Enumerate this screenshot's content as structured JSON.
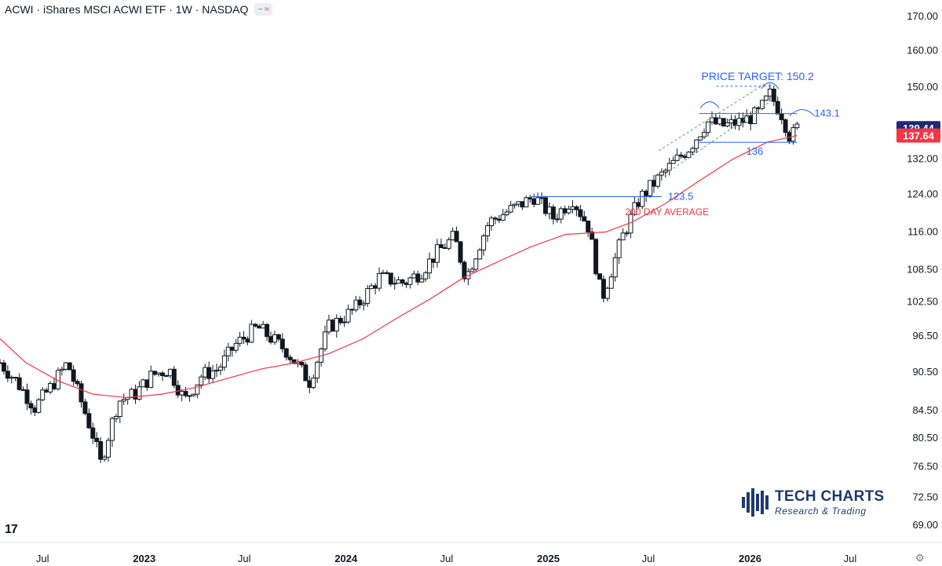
{
  "header": {
    "title": "ACWI · iShares MSCI ACWI ETF · 1W · NASDAQ",
    "badge_minus": "−",
    "badge_wave": "≈"
  },
  "footer": {
    "tv_logo": "17",
    "settings_icon": "⚙"
  },
  "brand": {
    "name": "TECH CHARTS",
    "subtitle": "Research & Trading"
  },
  "colors": {
    "up": "#ffffff",
    "down": "#131722",
    "ma": "#f23645",
    "annotation": "#2962ff",
    "pattern": "#4caf50",
    "last_price_bg": "#1e2a78",
    "ma_label_bg": "#f23645"
  },
  "chart_data": {
    "type": "candlestick",
    "symbol": "ACWI",
    "interval": "1W",
    "y_ticks": [
      "170.00",
      "160.00",
      "150.00",
      "139.44",
      "137.64",
      "132.00",
      "124.00",
      "116.00",
      "108.50",
      "102.50",
      "96.50",
      "90.50",
      "84.50",
      "80.50",
      "76.50",
      "72.50",
      "69.00"
    ],
    "y_tick_values": [
      170,
      160,
      150,
      132,
      124,
      116,
      108.5,
      102.5,
      96.5,
      90.5,
      84.5,
      80.5,
      76.5,
      72.5,
      69
    ],
    "x_ticks": [
      "Jul",
      "2023",
      "Jul",
      "2024",
      "Jul",
      "2025",
      "Jul",
      "2026",
      "Jul"
    ],
    "x_tick_dates": [
      "2022-07-01",
      "2023-01-01",
      "2023-07-01",
      "2024-01-01",
      "2024-07-01",
      "2025-01-01",
      "2025-07-01",
      "2026-01-01",
      "2026-07-01"
    ],
    "x_range": [
      "2022-04-15",
      "2026-09-20"
    ],
    "y_scale": "log",
    "ylim": [
      67,
      175
    ],
    "last_price": {
      "label": "139.44",
      "value": 139.44
    },
    "ma_value": {
      "label": "137.64",
      "value": 137.64
    },
    "anchors": [
      [
        "2022-04-15",
        92
      ],
      [
        "2022-05-15",
        89
      ],
      [
        "2022-06-17",
        85
      ],
      [
        "2022-07-15",
        88
      ],
      [
        "2022-08-15",
        92
      ],
      [
        "2022-09-30",
        81
      ],
      [
        "2022-10-14",
        77
      ],
      [
        "2022-11-15",
        86
      ],
      [
        "2022-12-15",
        87
      ],
      [
        "2023-01-15",
        90
      ],
      [
        "2023-02-15",
        91
      ],
      [
        "2023-03-15",
        86
      ],
      [
        "2023-04-15",
        90
      ],
      [
        "2023-05-15",
        91
      ],
      [
        "2023-06-15",
        95
      ],
      [
        "2023-07-25",
        98
      ],
      [
        "2023-09-15",
        94
      ],
      [
        "2023-10-27",
        89
      ],
      [
        "2023-12-01",
        98
      ],
      [
        "2024-01-15",
        101
      ],
      [
        "2024-03-01",
        107
      ],
      [
        "2024-04-15",
        106
      ],
      [
        "2024-05-15",
        108
      ],
      [
        "2024-06-15",
        112
      ],
      [
        "2024-07-15",
        115
      ],
      [
        "2024-08-05",
        107
      ],
      [
        "2024-09-15",
        118
      ],
      [
        "2024-10-15",
        120
      ],
      [
        "2024-11-15",
        122
      ],
      [
        "2024-12-06",
        123.5
      ],
      [
        "2025-01-10",
        119
      ],
      [
        "2025-02-14",
        123
      ],
      [
        "2025-03-15",
        117
      ],
      [
        "2025-04-08",
        103
      ],
      [
        "2025-05-15",
        115
      ],
      [
        "2025-06-15",
        123
      ],
      [
        "2025-07-15",
        127
      ],
      [
        "2025-08-15",
        131
      ],
      [
        "2025-09-15",
        135
      ],
      [
        "2025-10-15",
        141
      ],
      [
        "2025-11-15",
        140
      ],
      [
        "2025-12-15",
        141
      ],
      [
        "2026-01-15",
        143
      ],
      [
        "2026-02-06",
        148
      ],
      [
        "2026-02-27",
        143
      ],
      [
        "2026-03-15",
        137
      ],
      [
        "2026-03-27",
        139.44
      ]
    ],
    "moving_average": {
      "name": "200 DAY AVERAGE",
      "points": [
        [
          "2022-04-15",
          96
        ],
        [
          "2022-06-01",
          92
        ],
        [
          "2022-08-01",
          89
        ],
        [
          "2022-10-01",
          87
        ],
        [
          "2022-12-01",
          86.5
        ],
        [
          "2023-02-01",
          87
        ],
        [
          "2023-04-01",
          88
        ],
        [
          "2023-06-01",
          89.5
        ],
        [
          "2023-08-01",
          91
        ],
        [
          "2023-10-01",
          92
        ],
        [
          "2023-12-01",
          93.5
        ],
        [
          "2024-02-01",
          96
        ],
        [
          "2024-04-01",
          99.5
        ],
        [
          "2024-06-01",
          103
        ],
        [
          "2024-08-01",
          107
        ],
        [
          "2024-10-01",
          110
        ],
        [
          "2024-12-01",
          113
        ],
        [
          "2025-02-01",
          115.5
        ],
        [
          "2025-04-15",
          116
        ],
        [
          "2025-06-01",
          118
        ],
        [
          "2025-08-01",
          122
        ],
        [
          "2025-10-01",
          127
        ],
        [
          "2025-12-01",
          132
        ],
        [
          "2026-02-01",
          136
        ],
        [
          "2026-03-27",
          137.64
        ]
      ]
    },
    "levels": [
      {
        "label": "123.5",
        "value": 123.5,
        "from": "2024-12-01",
        "to": "2025-07-25"
      },
      {
        "label": "136",
        "value": 136,
        "from": "2025-10-01",
        "to": "2026-03-27"
      },
      {
        "label": "143.1",
        "value": 143.1,
        "from": "2025-10-01",
        "to": "2026-03-27"
      }
    ],
    "price_target": {
      "label": "PRICE TARGET: 150.2",
      "value": 150.2
    },
    "annotations": {
      "ma_label": "200 DAY AVERAGE"
    }
  }
}
